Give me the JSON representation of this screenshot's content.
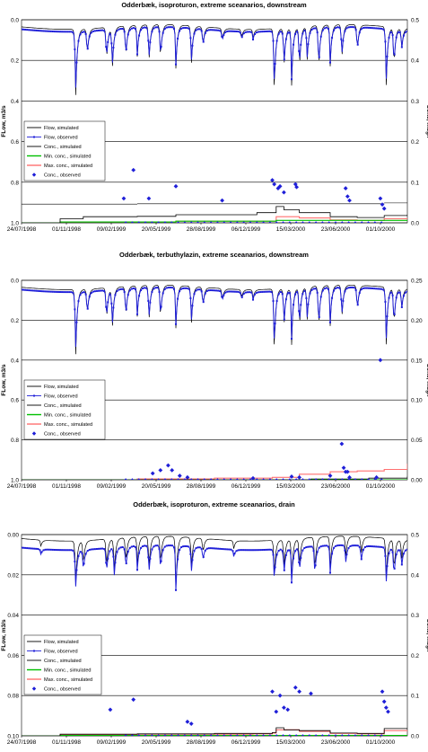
{
  "colors": {
    "flow_sim": "#000000",
    "flow_obs": "#1f1fd8",
    "conc_sim": "#000000",
    "min_conc": "#00c000",
    "max_conc": "#ff7070",
    "conc_obs": "#1f1fd8",
    "gridline": "#000000"
  },
  "chart_data": [
    {
      "type": "line",
      "title": "Odderbæk, isoproturon, extreme sceanarios, downstream",
      "ylabel_left": "FLow, m3/s",
      "ylabel_right": "Conc, mug/l",
      "x_tick_labels": [
        "24/07/1998",
        "01/11/1998",
        "09/02/1999",
        "20/05/1999",
        "28/08/1999",
        "06/12/1999",
        "15/03/2000",
        "23/06/2000",
        "01/10/2000"
      ],
      "y_left_ticks": [
        "0.0",
        "0.2",
        "0.4",
        "0.6",
        "0.8",
        "1.0"
      ],
      "y_left_range": [
        0,
        1.0
      ],
      "y_left_inverted": true,
      "y_right_ticks": [
        "0.5",
        "0.4",
        "0.3",
        "0.2",
        "0.1",
        "0.0"
      ],
      "y_right_range": [
        0,
        0.5
      ],
      "legend": [
        "Flow, simulated",
        "Flow, observed",
        "Conc., simulated",
        "Min. conc., simulated",
        "Max. conc., simulated",
        "Conc., observed"
      ],
      "legend_position": "middle-left",
      "flow_base": 0.035,
      "flow_obs_offset": 0.012,
      "flow_peaks": [
        [
          0.14,
          0.4
        ],
        [
          0.17,
          0.18
        ],
        [
          0.22,
          0.22
        ],
        [
          0.235,
          0.26
        ],
        [
          0.27,
          0.21
        ],
        [
          0.3,
          0.19
        ],
        [
          0.33,
          0.24
        ],
        [
          0.36,
          0.22
        ],
        [
          0.4,
          0.25
        ],
        [
          0.44,
          0.24
        ],
        [
          0.47,
          0.14
        ],
        [
          0.52,
          0.1
        ],
        [
          0.57,
          0.08
        ],
        [
          0.6,
          0.08
        ],
        [
          0.655,
          0.36
        ],
        [
          0.68,
          0.25
        ],
        [
          0.7,
          0.32
        ],
        [
          0.72,
          0.27
        ],
        [
          0.74,
          0.22
        ],
        [
          0.77,
          0.28
        ],
        [
          0.8,
          0.24
        ],
        [
          0.83,
          0.22
        ],
        [
          0.87,
          0.18
        ],
        [
          0.945,
          0.34
        ],
        [
          0.965,
          0.25
        ],
        [
          0.985,
          0.15
        ]
      ],
      "conc_sim_steps": [
        [
          0.0,
          0.0
        ],
        [
          0.1,
          0.01
        ],
        [
          0.16,
          0.015
        ],
        [
          0.3,
          0.016
        ],
        [
          0.4,
          0.02
        ],
        [
          0.55,
          0.02
        ],
        [
          0.61,
          0.025
        ],
        [
          0.66,
          0.04
        ],
        [
          0.68,
          0.032
        ],
        [
          0.72,
          0.025
        ],
        [
          0.8,
          0.015
        ],
        [
          0.87,
          0.013
        ],
        [
          0.94,
          0.018
        ],
        [
          1.0,
          0.02
        ]
      ],
      "min_conc_steps": [
        [
          0.0,
          0.0
        ],
        [
          0.1,
          0.002
        ],
        [
          0.4,
          0.004
        ],
        [
          0.66,
          0.006
        ],
        [
          1.0,
          0.006
        ]
      ],
      "max_conc_steps": [
        [
          0.0,
          0.0
        ],
        [
          0.1,
          0.002
        ],
        [
          0.4,
          0.004
        ],
        [
          0.66,
          0.015
        ],
        [
          0.72,
          0.012
        ],
        [
          0.8,
          0.007
        ],
        [
          0.87,
          0.006
        ],
        [
          0.94,
          0.01
        ],
        [
          1.0,
          0.012
        ]
      ],
      "hlines": [
        [
          0.0,
          0.3,
          0.015
        ],
        [
          0.3,
          0.94,
          0.016
        ],
        [
          0.94,
          1.0,
          0.018
        ]
      ],
      "conc_obs_points": [
        [
          0.265,
          0.06
        ],
        [
          0.29,
          0.13
        ],
        [
          0.33,
          0.06
        ],
        [
          0.4,
          0.09
        ],
        [
          0.52,
          0.055
        ],
        [
          0.65,
          0.105
        ],
        [
          0.655,
          0.095
        ],
        [
          0.665,
          0.085
        ],
        [
          0.67,
          0.09
        ],
        [
          0.68,
          0.075
        ],
        [
          0.71,
          0.095
        ],
        [
          0.713,
          0.088
        ],
        [
          0.84,
          0.085
        ],
        [
          0.845,
          0.065
        ],
        [
          0.85,
          0.055
        ],
        [
          0.93,
          0.06
        ],
        [
          0.935,
          0.045
        ],
        [
          0.94,
          0.035
        ]
      ]
    },
    {
      "type": "line",
      "title": "Odderbæk, terbuthylazin, extreme sceanarios, downstream",
      "ylabel_left": "FLow, m3/s",
      "ylabel_right": "Conc, mug/l",
      "x_tick_labels": [
        "24/07/1998",
        "01/11/1998",
        "09/02/1999",
        "20/05/1999",
        "28/08/1999",
        "06/12/1999",
        "15/03/2000",
        "23/06/2000",
        "01/10/2000"
      ],
      "y_left_ticks": [
        "0.0",
        "0.2",
        "0.4",
        "0.6",
        "0.8",
        "1.0"
      ],
      "y_left_range": [
        0,
        1.0
      ],
      "y_left_inverted": true,
      "y_right_ticks": [
        "0.25",
        "0.20",
        "0.15",
        "0.10",
        "0.05",
        "0.00"
      ],
      "y_right_range": [
        0,
        0.25
      ],
      "legend": [
        "Flow, simulated",
        "Flow, observed",
        "Conc., simulated",
        "Min. conc., simulated",
        "Max. conc., simulated",
        "Conc., observed"
      ],
      "legend_position": "middle-left",
      "flow_base": 0.035,
      "flow_obs_offset": 0.012,
      "flow_peaks": [
        [
          0.14,
          0.4
        ],
        [
          0.17,
          0.18
        ],
        [
          0.22,
          0.22
        ],
        [
          0.235,
          0.26
        ],
        [
          0.27,
          0.21
        ],
        [
          0.3,
          0.19
        ],
        [
          0.33,
          0.24
        ],
        [
          0.36,
          0.22
        ],
        [
          0.4,
          0.25
        ],
        [
          0.44,
          0.24
        ],
        [
          0.47,
          0.14
        ],
        [
          0.52,
          0.1
        ],
        [
          0.57,
          0.08
        ],
        [
          0.6,
          0.08
        ],
        [
          0.655,
          0.36
        ],
        [
          0.68,
          0.25
        ],
        [
          0.7,
          0.32
        ],
        [
          0.72,
          0.27
        ],
        [
          0.74,
          0.22
        ],
        [
          0.77,
          0.28
        ],
        [
          0.8,
          0.24
        ],
        [
          0.83,
          0.22
        ],
        [
          0.87,
          0.18
        ],
        [
          0.945,
          0.34
        ],
        [
          0.965,
          0.25
        ],
        [
          0.985,
          0.15
        ]
      ],
      "conc_sim_steps": [
        [
          0.0,
          0.0
        ],
        [
          0.66,
          0.0
        ],
        [
          0.75,
          0.001
        ],
        [
          0.9,
          0.002
        ],
        [
          1.0,
          0.004
        ]
      ],
      "min_conc_steps": [
        [
          0.0,
          0.0
        ],
        [
          1.0,
          0.0
        ]
      ],
      "max_conc_steps": [
        [
          0.0,
          0.0
        ],
        [
          0.3,
          0.001
        ],
        [
          0.5,
          0.002
        ],
        [
          0.65,
          0.003
        ],
        [
          0.72,
          0.007
        ],
        [
          0.8,
          0.01
        ],
        [
          0.87,
          0.011
        ],
        [
          0.94,
          0.013
        ],
        [
          1.0,
          0.02
        ]
      ],
      "hlines": [],
      "conc_obs_points": [
        [
          0.34,
          0.008
        ],
        [
          0.36,
          0.012
        ],
        [
          0.38,
          0.018
        ],
        [
          0.39,
          0.012
        ],
        [
          0.41,
          0.005
        ],
        [
          0.43,
          0.003
        ],
        [
          0.6,
          0.002
        ],
        [
          0.7,
          0.004
        ],
        [
          0.72,
          0.003
        ],
        [
          0.8,
          0.005
        ],
        [
          0.83,
          0.045
        ],
        [
          0.835,
          0.015
        ],
        [
          0.84,
          0.01
        ],
        [
          0.845,
          0.01
        ],
        [
          0.85,
          0.003
        ],
        [
          0.92,
          0.003
        ],
        [
          0.93,
          0.15
        ]
      ]
    },
    {
      "type": "line",
      "title": "Odderbæk, isoproturon, extreme sceanarios, drain",
      "ylabel_left": "FLow, m3/s",
      "ylabel_right": "Conc, mug/l",
      "x_tick_labels": [
        "24/07/1998",
        "01/11/1998",
        "09/02/1999",
        "20/05/1999",
        "28/08/1999",
        "06/12/1999",
        "15/03/2000",
        "23/06/2000",
        "01/10/2000"
      ],
      "y_left_ticks": [
        "0.00",
        "0.02",
        "0.04",
        "0.06",
        "0.08",
        "0.10"
      ],
      "y_left_range": [
        0,
        0.1
      ],
      "y_left_inverted": true,
      "y_right_ticks": [
        "0.5",
        "0.4",
        "0.3",
        "0.2",
        "0.1",
        "0.0"
      ],
      "y_right_range": [
        0,
        0.5
      ],
      "legend": [
        "Flow, simulated",
        "Flow, observed",
        "Conc., simulated",
        "Min. conc., simulated",
        "Max. conc., simulated",
        "Conc., observed"
      ],
      "legend_position": "middle-left",
      "flow_base": 0.002,
      "flow_obs_offset": 0.0045,
      "flow_peaks_drain": [
        [
          0.05,
          0.005
        ],
        [
          0.14,
          0.026
        ],
        [
          0.16,
          0.015
        ],
        [
          0.22,
          0.018
        ],
        [
          0.24,
          0.02
        ],
        [
          0.27,
          0.016
        ],
        [
          0.3,
          0.016
        ],
        [
          0.33,
          0.02
        ],
        [
          0.36,
          0.017
        ],
        [
          0.4,
          0.028
        ],
        [
          0.44,
          0.018
        ],
        [
          0.47,
          0.01
        ],
        [
          0.55,
          0.006
        ],
        [
          0.655,
          0.02
        ],
        [
          0.68,
          0.018
        ],
        [
          0.7,
          0.022
        ],
        [
          0.72,
          0.018
        ],
        [
          0.76,
          0.02
        ],
        [
          0.8,
          0.018
        ],
        [
          0.84,
          0.013
        ],
        [
          0.88,
          0.012
        ],
        [
          0.945,
          0.023
        ],
        [
          0.965,
          0.02
        ],
        [
          0.985,
          0.013
        ]
      ],
      "conc_sim_steps": [
        [
          0.0,
          0.0
        ],
        [
          0.1,
          0.004
        ],
        [
          0.3,
          0.005
        ],
        [
          0.5,
          0.006
        ],
        [
          0.65,
          0.008
        ],
        [
          0.66,
          0.02
        ],
        [
          0.68,
          0.015
        ],
        [
          0.72,
          0.013
        ],
        [
          0.8,
          0.007
        ],
        [
          0.87,
          0.006
        ],
        [
          0.94,
          0.018
        ],
        [
          1.0,
          0.015
        ]
      ],
      "min_conc_steps": [
        [
          0.0,
          0.0
        ],
        [
          0.1,
          0.001
        ],
        [
          1.0,
          0.002
        ]
      ],
      "max_conc_steps": [
        [
          0.0,
          0.0
        ],
        [
          0.1,
          0.003
        ],
        [
          0.3,
          0.004
        ],
        [
          0.6,
          0.005
        ],
        [
          0.65,
          0.007
        ],
        [
          0.66,
          0.015
        ],
        [
          0.72,
          0.011
        ],
        [
          0.8,
          0.006
        ],
        [
          0.87,
          0.005
        ],
        [
          0.94,
          0.013
        ],
        [
          1.0,
          0.011
        ]
      ],
      "hlines": [],
      "conc_obs_points": [
        [
          0.23,
          0.065
        ],
        [
          0.29,
          0.09
        ],
        [
          0.43,
          0.035
        ],
        [
          0.44,
          0.03
        ],
        [
          0.65,
          0.11
        ],
        [
          0.66,
          0.06
        ],
        [
          0.67,
          0.1
        ],
        [
          0.68,
          0.07
        ],
        [
          0.69,
          0.065
        ],
        [
          0.71,
          0.12
        ],
        [
          0.72,
          0.11
        ],
        [
          0.75,
          0.105
        ],
        [
          0.935,
          0.11
        ],
        [
          0.94,
          0.085
        ],
        [
          0.945,
          0.07
        ],
        [
          0.95,
          0.06
        ]
      ]
    }
  ]
}
